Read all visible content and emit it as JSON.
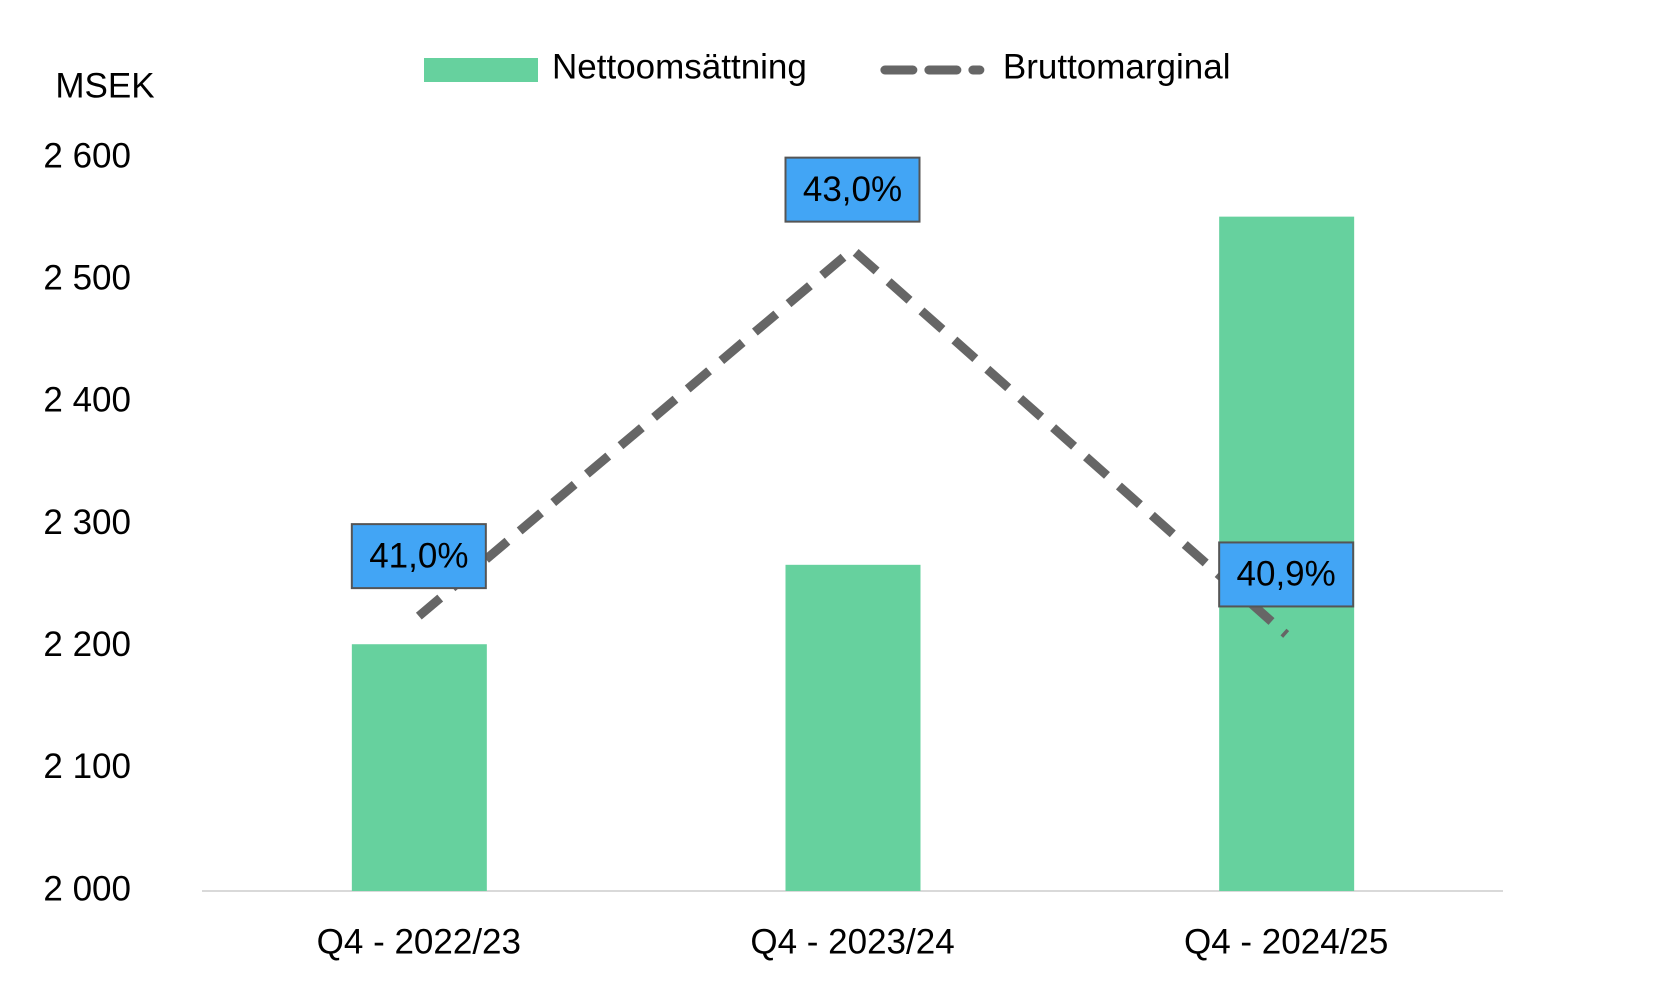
{
  "chart_data": {
    "type": "bar",
    "y_label": "MSEK",
    "categories": [
      "Q4 - 2022/23",
      "Q4 - 2023/24",
      "Q4 - 2024/25"
    ],
    "series": [
      {
        "name": "Nettoomsättning",
        "type": "bar",
        "color": "#66d19e",
        "values": [
          2202,
          2267,
          2552
        ]
      },
      {
        "name": "Bruttomarginal",
        "type": "line",
        "axis": "y2",
        "color": "#666666",
        "dashed": true,
        "values": [
          41.0,
          43.0,
          40.9
        ],
        "value_labels": [
          "41,0%",
          "43,0%",
          "40,9%"
        ],
        "label_color": "#42a5f5"
      }
    ],
    "ylim": [
      2000,
      2600
    ],
    "yticks": [
      {
        "value": 2000,
        "label": "2 000"
      },
      {
        "value": 2100,
        "label": "2 100"
      },
      {
        "value": 2200,
        "label": "2 200"
      },
      {
        "value": 2300,
        "label": "2 300"
      },
      {
        "value": 2400,
        "label": "2 400"
      },
      {
        "value": 2500,
        "label": "2 500"
      },
      {
        "value": 2600,
        "label": "2 600"
      }
    ],
    "y2lim": [
      39.5,
      43.5
    ],
    "grid": false
  }
}
